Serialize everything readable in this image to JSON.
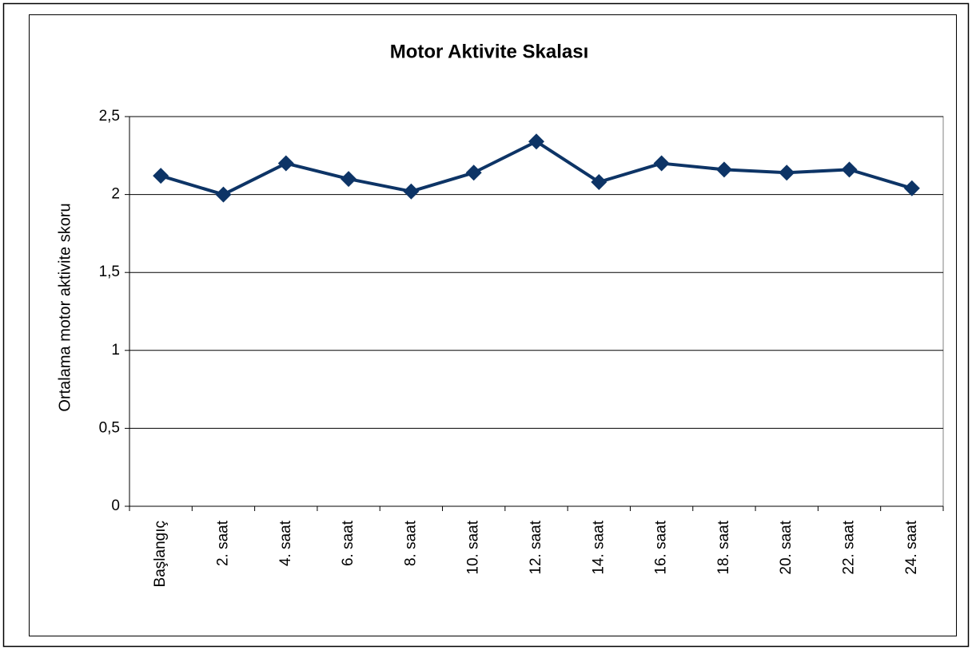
{
  "chart_data": {
    "type": "line",
    "title": "Motor Aktivite Skalası",
    "y_label": "Ortalama motor aktivite skoru",
    "categories": [
      "Başlangıç",
      "2. saat",
      "4. saat",
      "6. saat",
      "8. saat",
      "10. saat",
      "12. saat",
      "14. saat",
      "16. saat",
      "18. saat",
      "20. saat",
      "22. saat",
      "24. saat"
    ],
    "values": [
      2.12,
      2.0,
      2.2,
      2.1,
      2.02,
      2.14,
      2.34,
      2.08,
      2.2,
      2.16,
      2.14,
      2.16,
      2.04
    ],
    "color": "#0d3466",
    "ylim": [
      0,
      2.5
    ],
    "yticks": [
      0,
      {
        "value": 0.5,
        "label": "0,5"
      },
      1,
      {
        "value": 1.5,
        "label": "1,5"
      },
      2,
      {
        "value": 2.5,
        "label": "2,5"
      }
    ],
    "grid": true
  }
}
